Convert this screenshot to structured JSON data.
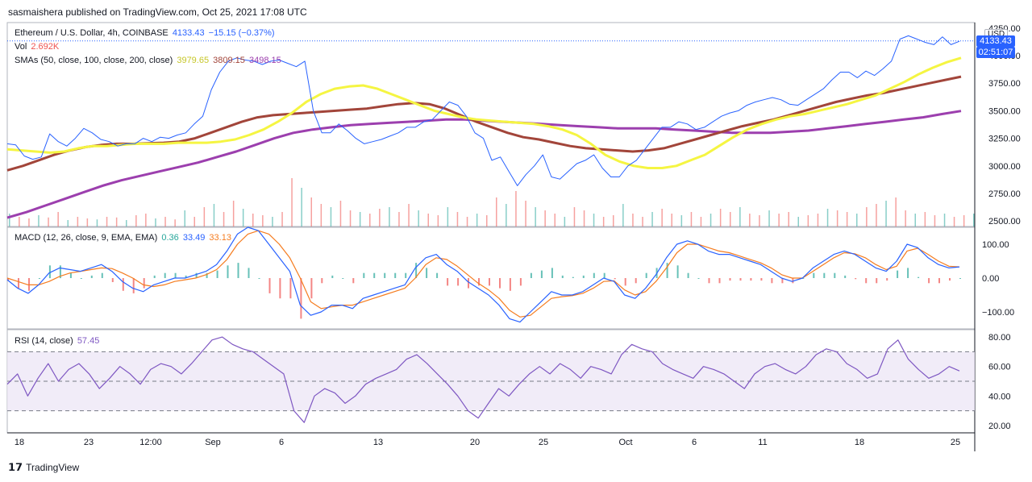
{
  "header": {
    "published": "sasmaishera published on TradingView.com, Oct 25, 2021 17:08 UTC"
  },
  "main_legend": {
    "symbol": "Ethereum / U.S. Dollar, 4h, COINBASE",
    "last": "4133.43",
    "change": "−15.15 (−0.37%)",
    "vol_label": "Vol",
    "vol_value": "2.692K",
    "sma_label": "SMAs (50, close, 100, close, 200, close)",
    "sma50_value": "3979.65",
    "sma100_value": "3809.15",
    "sma200_value": "3498.15"
  },
  "price_axis": {
    "currency": "USD",
    "last_price": "4133.43",
    "countdown": "02:51:07"
  },
  "macd_legend": {
    "label": "MACD (12, 26, close, 9, EMA, EMA)",
    "hist": "0.36",
    "macd": "33.49",
    "signal": "33.13"
  },
  "rsi_legend": {
    "label": "RSI (14, close)",
    "value": "57.45"
  },
  "footer": {
    "brand": "TradingView"
  },
  "colors": {
    "price": "#2962ff",
    "sma50": "#f5f542",
    "sma100": "#a2453a",
    "sma200": "#9c3fae",
    "macd": "#2962ff",
    "signal": "#f57c1f",
    "hist_up": "#26a69a",
    "hist_down": "#ef5350",
    "rsi": "#7e57c2",
    "rsi_band": "#ede7f6"
  },
  "chart_data": [
    {
      "type": "line",
      "title": "Ethereum / U.S. Dollar, 4h, COINBASE",
      "x_ticks": [
        "18",
        "23",
        "12:00",
        "Sep",
        "6",
        "13",
        "20",
        "25",
        "Oct",
        "6",
        "11",
        "18",
        "25"
      ],
      "ylim": [
        2450,
        4300
      ],
      "y_ticks": [
        2500,
        2750,
        3000,
        3250,
        3500,
        3750,
        4000,
        4250
      ],
      "series": [
        {
          "name": "Ethereum / U.S. Dollar",
          "values": [
            3200,
            3190,
            3090,
            3060,
            3080,
            3290,
            3220,
            3180,
            3250,
            3340,
            3300,
            3240,
            3220,
            3180,
            3200,
            3200,
            3250,
            3220,
            3260,
            3250,
            3280,
            3300,
            3380,
            3450,
            3690,
            3850,
            3950,
            3980,
            3960,
            3950,
            3920,
            3950,
            3960,
            3930,
            3900,
            3950,
            3500,
            3300,
            3300,
            3380,
            3320,
            3250,
            3200,
            3220,
            3240,
            3270,
            3300,
            3350,
            3350,
            3400,
            3420,
            3500,
            3580,
            3550,
            3450,
            3300,
            3250,
            3050,
            3080,
            2950,
            2820,
            2920,
            3000,
            3100,
            2900,
            2880,
            2950,
            3020,
            3050,
            3100,
            2980,
            2900,
            2900,
            3000,
            3050,
            3150,
            3250,
            3350,
            3350,
            3400,
            3380,
            3330,
            3350,
            3400,
            3450,
            3480,
            3500,
            3550,
            3580,
            3600,
            3620,
            3600,
            3560,
            3550,
            3600,
            3650,
            3700,
            3780,
            3850,
            3850,
            3800,
            3860,
            3820,
            3880,
            3950,
            4150,
            4180,
            4150,
            4120,
            4100,
            4170,
            4100,
            4130
          ]
        },
        {
          "name": "SMA 50",
          "values": [
            3150,
            3140,
            3130,
            3120,
            3130,
            3160,
            3180,
            3180,
            3190,
            3200,
            3200,
            3200,
            3210,
            3210,
            3210,
            3220,
            3240,
            3280,
            3330,
            3400,
            3480,
            3580,
            3650,
            3700,
            3720,
            3730,
            3700,
            3650,
            3600,
            3550,
            3500,
            3470,
            3440,
            3420,
            3410,
            3400,
            3390,
            3380,
            3360,
            3330,
            3280,
            3200,
            3100,
            3040,
            3000,
            2980,
            2980,
            3000,
            3050,
            3100,
            3180,
            3260,
            3330,
            3380,
            3420,
            3450,
            3470,
            3500,
            3530,
            3560,
            3600,
            3640,
            3700,
            3760,
            3830,
            3890,
            3940,
            3980
          ]
        },
        {
          "name": "SMA 100",
          "values": [
            2960,
            3000,
            3050,
            3100,
            3140,
            3170,
            3190,
            3200,
            3200,
            3205,
            3210,
            3220,
            3250,
            3300,
            3350,
            3400,
            3440,
            3460,
            3470,
            3480,
            3490,
            3500,
            3510,
            3520,
            3540,
            3560,
            3570,
            3560,
            3520,
            3460,
            3400,
            3350,
            3300,
            3260,
            3240,
            3210,
            3180,
            3160,
            3150,
            3140,
            3130,
            3140,
            3160,
            3200,
            3240,
            3280,
            3320,
            3360,
            3390,
            3420,
            3460,
            3500,
            3540,
            3580,
            3610,
            3640,
            3660,
            3690,
            3720,
            3750,
            3780,
            3809
          ]
        },
        {
          "name": "SMA 200",
          "values": [
            2530,
            2580,
            2640,
            2700,
            2760,
            2820,
            2870,
            2910,
            2950,
            2990,
            3030,
            3080,
            3130,
            3190,
            3250,
            3300,
            3330,
            3350,
            3370,
            3380,
            3390,
            3400,
            3410,
            3420,
            3420,
            3410,
            3400,
            3390,
            3380,
            3370,
            3360,
            3350,
            3340,
            3340,
            3340,
            3330,
            3320,
            3310,
            3300,
            3300,
            3300,
            3310,
            3320,
            3340,
            3360,
            3380,
            3400,
            3420,
            3440,
            3470,
            3498
          ]
        }
      ]
    },
    {
      "type": "bar",
      "title": "Vol",
      "values": [
        40,
        30,
        25,
        35,
        28,
        45,
        20,
        30,
        25,
        22,
        30,
        28,
        20,
        35,
        40,
        25,
        30,
        22,
        50,
        30,
        60,
        70,
        45,
        80,
        55,
        40,
        35,
        30,
        45,
        150,
        120,
        90,
        70,
        60,
        80,
        50,
        45,
        40,
        55,
        60,
        45,
        70,
        50,
        40,
        35,
        60,
        45,
        30,
        40,
        35,
        90,
        70,
        110,
        80,
        60,
        50,
        40,
        30,
        60,
        50,
        40,
        30,
        35,
        70,
        40,
        30,
        45,
        55,
        40,
        35,
        45,
        30,
        40,
        55,
        45,
        60,
        40,
        35,
        50,
        40,
        45,
        30,
        35,
        40,
        55,
        50,
        45,
        40,
        60,
        70,
        80,
        90,
        50,
        40,
        45,
        35,
        40,
        30,
        35,
        40
      ]
    },
    {
      "type": "line",
      "title": "MACD (12, 26, close, 9, EMA, EMA)",
      "ylim": [
        -150,
        150
      ],
      "y_ticks": [
        -100,
        0,
        100
      ],
      "series": [
        {
          "name": "MACD",
          "values": [
            -5,
            -30,
            -45,
            -20,
            15,
            30,
            25,
            20,
            30,
            40,
            20,
            -10,
            -30,
            -40,
            -20,
            -10,
            0,
            0,
            10,
            20,
            40,
            80,
            130,
            150,
            140,
            100,
            60,
            20,
            -80,
            -110,
            -100,
            -80,
            -80,
            -90,
            -60,
            -50,
            -40,
            -30,
            -20,
            30,
            60,
            70,
            40,
            20,
            -10,
            -30,
            -50,
            -80,
            -120,
            -130,
            -100,
            -70,
            -40,
            -50,
            -50,
            -40,
            -20,
            0,
            -10,
            -50,
            -60,
            -30,
            10,
            60,
            100,
            110,
            100,
            80,
            70,
            70,
            60,
            50,
            40,
            20,
            0,
            -10,
            0,
            30,
            50,
            70,
            80,
            70,
            50,
            30,
            20,
            50,
            100,
            90,
            60,
            40,
            30,
            33
          ]
        },
        {
          "name": "Signal",
          "values": [
            0,
            -10,
            -20,
            -20,
            -10,
            5,
            15,
            20,
            25,
            30,
            28,
            15,
            0,
            -20,
            -25,
            -20,
            -10,
            -5,
            0,
            10,
            25,
            55,
            100,
            130,
            140,
            130,
            100,
            60,
            0,
            -70,
            -90,
            -85,
            -80,
            -80,
            -70,
            -60,
            -50,
            -40,
            -30,
            0,
            40,
            60,
            55,
            35,
            10,
            -15,
            -35,
            -60,
            -95,
            -115,
            -110,
            -85,
            -60,
            -55,
            -52,
            -45,
            -30,
            -10,
            -8,
            -35,
            -50,
            -40,
            -10,
            30,
            75,
            100,
            100,
            90,
            80,
            75,
            65,
            55,
            45,
            30,
            10,
            0,
            0,
            20,
            40,
            60,
            75,
            72,
            60,
            40,
            25,
            35,
            80,
            88,
            70,
            50,
            35,
            33
          ]
        }
      ]
    },
    {
      "type": "line",
      "title": "RSI (14, close)",
      "ylim": [
        15,
        85
      ],
      "y_ticks": [
        20,
        40,
        60,
        80
      ],
      "series": [
        {
          "name": "RSI",
          "values": [
            48,
            55,
            40,
            52,
            62,
            50,
            58,
            62,
            55,
            45,
            52,
            60,
            55,
            48,
            58,
            62,
            60,
            55,
            62,
            70,
            78,
            80,
            75,
            72,
            70,
            65,
            60,
            55,
            30,
            22,
            40,
            45,
            42,
            35,
            40,
            48,
            52,
            55,
            58,
            65,
            68,
            62,
            55,
            48,
            40,
            30,
            25,
            35,
            45,
            40,
            48,
            55,
            60,
            55,
            62,
            58,
            52,
            60,
            58,
            55,
            68,
            75,
            72,
            70,
            62,
            58,
            55,
            52,
            60,
            58,
            55,
            50,
            45,
            55,
            60,
            62,
            58,
            55,
            60,
            68,
            72,
            70,
            62,
            58,
            52,
            55,
            72,
            78,
            65,
            58,
            52,
            55,
            60,
            57
          ]
        }
      ]
    }
  ]
}
